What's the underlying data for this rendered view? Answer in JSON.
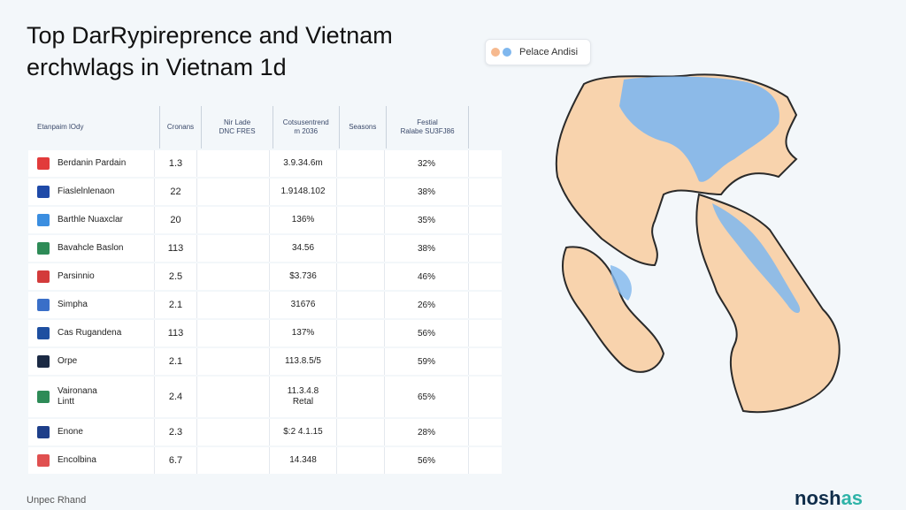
{
  "title": {
    "line1": "Top DarRypireprence and Vietnam",
    "line2": "erchwlags in Vietnam 1d"
  },
  "legend": {
    "label": "Pelace Andisi",
    "colors": {
      "dot1": "#f6b98f",
      "dot2": "#7fb7ee"
    }
  },
  "table": {
    "headers": [
      "Etanpaim lOdy",
      "Cronans",
      "Nir Lade\nDNC FRES",
      "Cotsusentrend\nm 2036",
      "Seasons",
      "Festial\nRalabe SU3FJ86",
      ""
    ],
    "rows": [
      {
        "name": "Berdanin Pardain",
        "a": "1.3",
        "c": "3.9.34.6m",
        "e": "32%",
        "logo": "#e23b3b"
      },
      {
        "name": "Fiaslelnlenaon",
        "a": "22",
        "c": "1.9148.102",
        "e": "38%",
        "logo": "#1f4aa8"
      },
      {
        "name": "Barthle Nuaxclar",
        "a": "20",
        "c": "136%",
        "e": "35%",
        "logo": "#3b8ee0"
      },
      {
        "name": "Bavahcle Baslon",
        "a": "113",
        "c": "34.56",
        "e": "38%",
        "logo": "#2e8b57"
      },
      {
        "name": "Parsinnio",
        "a": "2.5",
        "c": "$3.736",
        "e": "46%",
        "logo": "#d33b3b"
      },
      {
        "name": "Simpha",
        "a": "2.1",
        "c": "31676",
        "e": "26%",
        "logo": "#3a6fc8"
      },
      {
        "name": "Cas Rugandena",
        "a": "113",
        "c": "137%",
        "e": "56%",
        "logo": "#1e4fa0"
      },
      {
        "name": "Orpe",
        "a": "2.1",
        "c": "113.8.5/5",
        "e": "59%",
        "logo": "#1b2a44"
      },
      {
        "name": "Vaironana\nLintt",
        "a": "2.4",
        "c": "11.3.4.8\nRetal",
        "e": "65%",
        "logo": "#2e8b57"
      },
      {
        "name": "Enone",
        "a": "2.3",
        "c": "$:2 4.1.15",
        "e": "28%",
        "logo": "#1e3f8a"
      },
      {
        "name": "Encolbina",
        "a": "6.7",
        "c": "14.348",
        "e": "56%",
        "logo": "#e05050"
      }
    ]
  },
  "footer": {
    "left": "Unpec Rhand",
    "brand_main": "nosh",
    "brand_accent": "as"
  },
  "map": {
    "land_color": "#f8d3ad",
    "water_highlight": "#7fb7ee"
  }
}
